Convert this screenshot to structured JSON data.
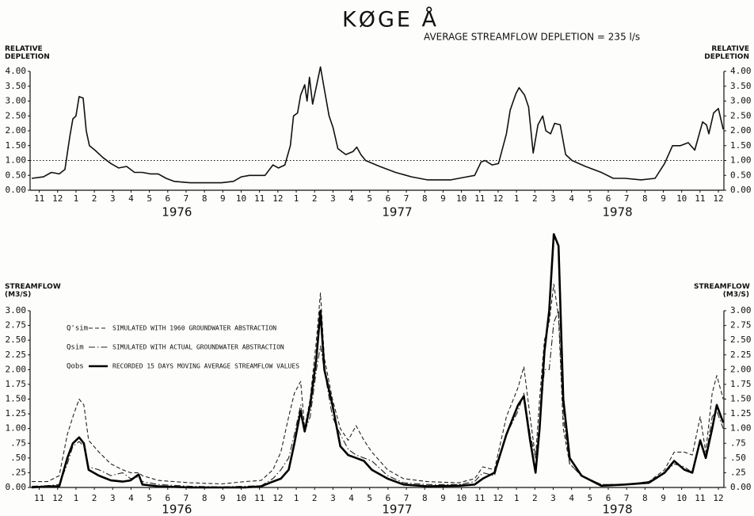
{
  "chart_data": [
    {
      "type": "line",
      "title": "KØGE Å",
      "subtitle": "AVERAGE STREAMFLOW DEPLETION = 235 l/s",
      "ylabel": "RELATIVE DEPLETION",
      "right_axis": true,
      "xlim": [
        0,
        37.8
      ],
      "ylim": [
        0,
        4
      ],
      "yticks": [
        {
          "value": 0,
          "label": "0.00"
        },
        {
          "value": 0.5,
          "label": "0.50"
        },
        {
          "value": 1,
          "label": "1.00"
        },
        {
          "value": 1.5,
          "label": "1.50"
        },
        {
          "value": 2,
          "label": "2.00"
        },
        {
          "value": 2.5,
          "label": "2.50"
        },
        {
          "value": 3,
          "label": "3.00"
        },
        {
          "value": 3.5,
          "label": "3.50"
        },
        {
          "value": 4,
          "label": "4.00"
        }
      ],
      "xticks": [
        {
          "value": 0.5,
          "label": "11"
        },
        {
          "value": 1.5,
          "label": "12"
        },
        {
          "value": 2.5,
          "label": "1"
        },
        {
          "value": 3.5,
          "label": "2"
        },
        {
          "value": 4.5,
          "label": "3"
        },
        {
          "value": 5.5,
          "label": "4"
        },
        {
          "value": 6.5,
          "label": "5"
        },
        {
          "value": 7.5,
          "label": "6"
        },
        {
          "value": 8.5,
          "label": "7"
        },
        {
          "value": 9.5,
          "label": "8"
        },
        {
          "value": 10.5,
          "label": "9"
        },
        {
          "value": 11.5,
          "label": "10"
        },
        {
          "value": 12.5,
          "label": "11"
        },
        {
          "value": 13.5,
          "label": "12"
        },
        {
          "value": 14.5,
          "label": "1"
        },
        {
          "value": 15.5,
          "label": "2"
        },
        {
          "value": 16.5,
          "label": "3"
        },
        {
          "value": 17.5,
          "label": "4"
        },
        {
          "value": 18.5,
          "label": "5"
        },
        {
          "value": 19.5,
          "label": "6"
        },
        {
          "value": 20.5,
          "label": "7"
        },
        {
          "value": 21.5,
          "label": "8"
        },
        {
          "value": 22.5,
          "label": "9"
        },
        {
          "value": 23.5,
          "label": "10"
        },
        {
          "value": 24.5,
          "label": "11"
        },
        {
          "value": 25.5,
          "label": "12"
        },
        {
          "value": 26.5,
          "label": "1"
        },
        {
          "value": 27.5,
          "label": "2"
        },
        {
          "value": 28.5,
          "label": "3"
        },
        {
          "value": 29.5,
          "label": "4"
        },
        {
          "value": 30.5,
          "label": "5"
        },
        {
          "value": 31.5,
          "label": "6"
        },
        {
          "value": 32.5,
          "label": "7"
        },
        {
          "value": 33.5,
          "label": "8"
        },
        {
          "value": 34.5,
          "label": "9"
        },
        {
          "value": 35.5,
          "label": "10"
        },
        {
          "value": 36.5,
          "label": "11"
        },
        {
          "value": 37.5,
          "label": "12"
        }
      ],
      "years": [
        {
          "value": 8,
          "label": "1976"
        },
        {
          "value": 20,
          "label": "1977"
        },
        {
          "value": 32,
          "label": "1978"
        }
      ],
      "reference_line": 1,
      "color": "#111111",
      "line_style": "solid",
      "x": [
        0.09,
        0.73,
        1.16,
        1.59,
        1.9,
        2.16,
        2.33,
        2.5,
        2.67,
        2.89,
        3.06,
        3.23,
        3.53,
        3.97,
        4.4,
        4.83,
        5.26,
        5.69,
        6.12,
        6.55,
        6.98,
        7.41,
        7.84,
        8.71,
        9.57,
        10.43,
        11.08,
        11.51,
        11.94,
        12.8,
        13.23,
        13.53,
        13.88,
        14.18,
        14.35,
        14.57,
        14.74,
        14.96,
        15.09,
        15.22,
        15.39,
        15.6,
        15.82,
        16.03,
        16.29,
        16.51,
        16.77,
        17.2,
        17.59,
        17.8,
        18.02,
        18.28,
        19.05,
        19.91,
        20.78,
        21.64,
        22.93,
        23.79,
        24.22,
        24.57,
        24.78,
        25.17,
        25.52,
        25.95,
        26.16,
        26.47,
        26.64,
        26.94,
        27.16,
        27.41,
        27.67,
        27.93,
        28.1,
        28.36,
        28.58,
        28.88,
        29.18,
        29.53,
        30.26,
        31.12,
        31.77,
        32.41,
        33.28,
        34.05,
        34.57,
        35.0,
        35.43,
        35.86,
        36.21,
        36.64,
        36.85,
        36.98,
        37.24,
        37.5,
        37.76
      ],
      "values": [
        0.4,
        0.45,
        0.6,
        0.55,
        0.7,
        1.8,
        2.4,
        2.5,
        3.15,
        3.1,
        2.0,
        1.5,
        1.35,
        1.1,
        0.9,
        0.75,
        0.8,
        0.6,
        0.6,
        0.55,
        0.55,
        0.4,
        0.3,
        0.25,
        0.25,
        0.25,
        0.3,
        0.45,
        0.5,
        0.5,
        0.85,
        0.75,
        0.85,
        1.5,
        2.5,
        2.6,
        3.2,
        3.55,
        3.0,
        3.8,
        2.9,
        3.5,
        4.15,
        3.4,
        2.5,
        2.1,
        1.4,
        1.2,
        1.3,
        1.45,
        1.2,
        1.0,
        0.8,
        0.6,
        0.45,
        0.35,
        0.35,
        0.45,
        0.5,
        0.95,
        1.0,
        0.85,
        0.9,
        1.9,
        2.7,
        3.25,
        3.45,
        3.2,
        2.8,
        1.25,
        2.2,
        2.5,
        2.0,
        1.9,
        2.25,
        2.2,
        1.2,
        1.0,
        0.8,
        0.6,
        0.4,
        0.4,
        0.35,
        0.4,
        0.9,
        1.5,
        1.5,
        1.6,
        1.35,
        2.3,
        2.2,
        1.9,
        2.6,
        2.75,
        2.05
      ]
    },
    {
      "type": "line",
      "ylabel": "STREAMFLOW (M3/S)",
      "right_axis": true,
      "xlim": [
        0,
        37.8
      ],
      "ylim": [
        0,
        3
      ],
      "yticks": [
        {
          "value": 0,
          "label": "0.00"
        },
        {
          "value": 0.25,
          "label": ".25"
        },
        {
          "value": 0.5,
          "label": ".50"
        },
        {
          "value": 0.75,
          "label": ".75"
        },
        {
          "value": 1,
          "label": "1.00"
        },
        {
          "value": 1.25,
          "label": "1.25"
        },
        {
          "value": 1.5,
          "label": "1.50"
        },
        {
          "value": 1.75,
          "label": "1.75"
        },
        {
          "value": 2,
          "label": "2.00"
        },
        {
          "value": 2.25,
          "label": "2.25"
        },
        {
          "value": 2.5,
          "label": "2.50"
        },
        {
          "value": 2.75,
          "label": "2.75"
        },
        {
          "value": 3,
          "label": "3.00"
        }
      ],
      "xticks": [
        {
          "value": 0.5,
          "label": "11"
        },
        {
          "value": 1.5,
          "label": "12"
        },
        {
          "value": 2.5,
          "label": "1"
        },
        {
          "value": 3.5,
          "label": "2"
        },
        {
          "value": 4.5,
          "label": "3"
        },
        {
          "value": 5.5,
          "label": "4"
        },
        {
          "value": 6.5,
          "label": "5"
        },
        {
          "value": 7.5,
          "label": "6"
        },
        {
          "value": 8.5,
          "label": "7"
        },
        {
          "value": 9.5,
          "label": "8"
        },
        {
          "value": 10.5,
          "label": "9"
        },
        {
          "value": 11.5,
          "label": "10"
        },
        {
          "value": 12.5,
          "label": "11"
        },
        {
          "value": 13.5,
          "label": "12"
        },
        {
          "value": 14.5,
          "label": "1"
        },
        {
          "value": 15.5,
          "label": "2"
        },
        {
          "value": 16.5,
          "label": "3"
        },
        {
          "value": 17.5,
          "label": "4"
        },
        {
          "value": 18.5,
          "label": "5"
        },
        {
          "value": 19.5,
          "label": "6"
        },
        {
          "value": 20.5,
          "label": "7"
        },
        {
          "value": 21.5,
          "label": "8"
        },
        {
          "value": 22.5,
          "label": "9"
        },
        {
          "value": 23.5,
          "label": "10"
        },
        {
          "value": 24.5,
          "label": "11"
        },
        {
          "value": 25.5,
          "label": "12"
        },
        {
          "value": 26.5,
          "label": "1"
        },
        {
          "value": 27.5,
          "label": "2"
        },
        {
          "value": 28.5,
          "label": "3"
        },
        {
          "value": 29.5,
          "label": "4"
        },
        {
          "value": 30.5,
          "label": "5"
        },
        {
          "value": 31.5,
          "label": "6"
        },
        {
          "value": 32.5,
          "label": "7"
        },
        {
          "value": 33.5,
          "label": "8"
        },
        {
          "value": 34.5,
          "label": "9"
        },
        {
          "value": 35.5,
          "label": "10"
        },
        {
          "value": 36.5,
          "label": "11"
        },
        {
          "value": 37.5,
          "label": "12"
        }
      ],
      "years": [
        {
          "value": 8,
          "label": "1976"
        },
        {
          "value": 20,
          "label": "1977"
        },
        {
          "value": 32,
          "label": "1978"
        }
      ],
      "legend": "upper left",
      "x": [
        0.09,
        0.95,
        1.59,
        2.03,
        2.33,
        2.67,
        2.93,
        3.19,
        3.75,
        4.4,
        5.04,
        5.47,
        5.91,
        6.12,
        6.98,
        8.71,
        10.43,
        11.72,
        12.59,
        13.23,
        13.66,
        14.09,
        14.4,
        14.74,
        14.96,
        15.26,
        15.6,
        15.82,
        16.03,
        16.47,
        16.9,
        17.33,
        17.76,
        18.19,
        18.62,
        19.48,
        20.34,
        21.64,
        23.36,
        24.22,
        24.66,
        25.3,
        25.95,
        26.59,
        26.9,
        27.24,
        27.54,
        27.76,
        28.02,
        28.28,
        28.53,
        28.79,
        29.05,
        29.4,
        30.04,
        31.12,
        32.41,
        33.71,
        34.57,
        35.09,
        35.65,
        36.08,
        36.51,
        36.81,
        37.16,
        37.41,
        37.76
      ],
      "series": [
        {
          "symbol": "Q'sim",
          "name": "SIMULATED WITH 1960 GROUNDWATER ABSTRACTION",
          "color": "#222222",
          "line_style": "dashed",
          "values": [
            0.1,
            0.1,
            0.2,
            0.9,
            1.2,
            1.5,
            1.4,
            0.8,
            0.6,
            0.4,
            0.3,
            0.25,
            0.25,
            0.2,
            0.12,
            0.08,
            0.06,
            0.1,
            0.12,
            0.3,
            0.6,
            1.2,
            1.6,
            1.8,
            1.0,
            1.5,
            2.5,
            3.3,
            2.2,
            1.5,
            1.0,
            0.8,
            1.05,
            0.8,
            0.6,
            0.3,
            0.15,
            0.1,
            0.08,
            0.15,
            0.35,
            0.3,
            1.2,
            1.7,
            2.05,
            1.2,
            0.5,
            1.5,
            2.5,
            2.8,
            3.45,
            2.9,
            1.0,
            0.4,
            0.2,
            0.05,
            0.05,
            0.1,
            0.3,
            0.6,
            0.6,
            0.55,
            1.2,
            0.6,
            1.6,
            1.9,
            1.5
          ]
        },
        {
          "symbol": "Qsim",
          "name": "SIMULATED WITH ACTUAL GROUNDWATER ABSTRACTION",
          "color": "#222222",
          "line_style": "dashdot",
          "values": [
            0.02,
            0.03,
            0.05,
            0.4,
            0.7,
            0.78,
            0.7,
            0.35,
            0.3,
            0.2,
            0.25,
            0.15,
            0.18,
            0.1,
            0.05,
            0.02,
            0.01,
            0.02,
            0.03,
            0.15,
            0.3,
            0.5,
            0.9,
            1.4,
            0.95,
            1.2,
            2.0,
            2.4,
            2.0,
            1.2,
            0.9,
            0.65,
            0.55,
            0.5,
            0.45,
            0.2,
            0.08,
            0.05,
            0.05,
            0.1,
            0.25,
            0.2,
            0.9,
            1.3,
            1.6,
            0.9,
            0.5,
            1.1,
            2.0,
            2.0,
            2.8,
            3.0,
            1.2,
            0.4,
            0.2,
            0.05,
            0.05,
            0.1,
            0.25,
            0.4,
            0.35,
            0.25,
            0.8,
            0.5,
            1.2,
            1.3,
            1.0
          ]
        },
        {
          "symbol": "Qobs",
          "name": "RECORDED 15 DAYS MOVING AVERAGE STREAMFLOW VALUES",
          "color": "#000000",
          "line_style": "solid",
          "values": [
            0.0,
            0.02,
            0.02,
            0.5,
            0.75,
            0.85,
            0.75,
            0.3,
            0.2,
            0.12,
            0.1,
            0.12,
            0.22,
            0.05,
            0.02,
            0.0,
            0.0,
            0.0,
            0.02,
            0.1,
            0.15,
            0.3,
            0.75,
            1.3,
            0.95,
            1.4,
            2.2,
            3.0,
            2.0,
            1.4,
            0.7,
            0.55,
            0.5,
            0.45,
            0.3,
            0.15,
            0.05,
            0.02,
            0.03,
            0.05,
            0.15,
            0.25,
            0.9,
            1.4,
            1.55,
            0.8,
            0.25,
            1.0,
            2.3,
            3.0,
            4.3,
            4.1,
            1.5,
            0.5,
            0.2,
            0.03,
            0.05,
            0.08,
            0.25,
            0.45,
            0.3,
            0.25,
            0.8,
            0.5,
            1.0,
            1.4,
            1.1
          ]
        }
      ]
    }
  ]
}
